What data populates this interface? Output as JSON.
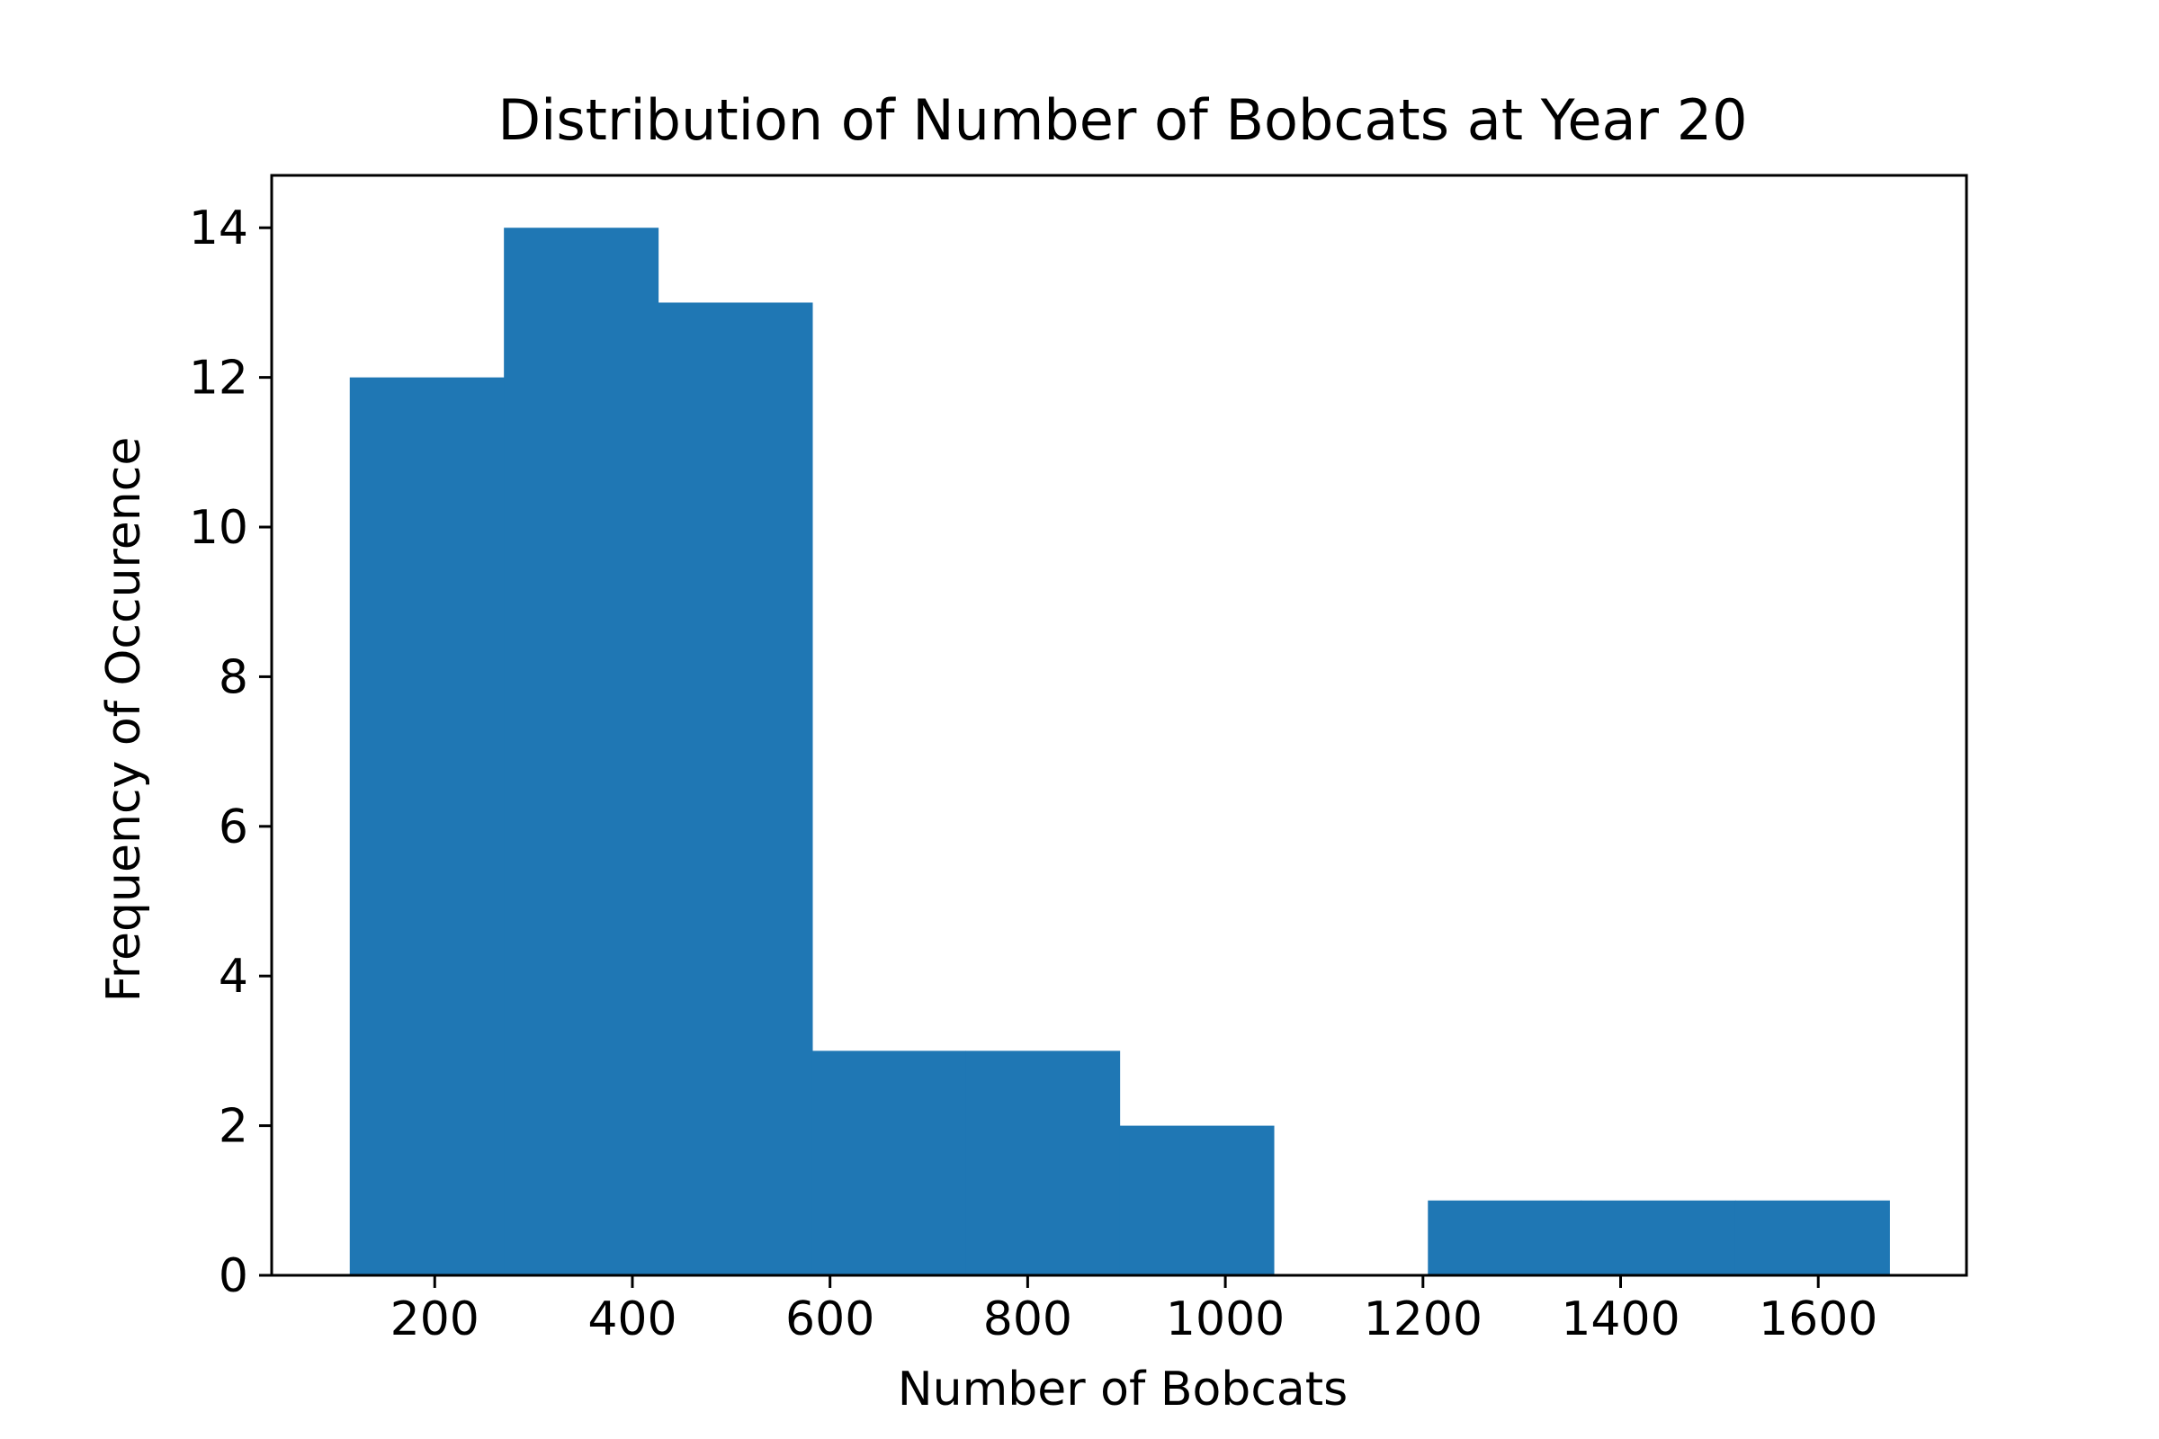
{
  "chart_data": {
    "type": "bar",
    "title": "Distribution of Number of Bobcats at Year 20",
    "xlabel": "Number of Bobcats",
    "ylabel": "Frequency of Occurence",
    "xlim": [
      35,
      1750
    ],
    "ylim": [
      0,
      14.7
    ],
    "xticks": [
      200,
      400,
      600,
      800,
      1000,
      1200,
      1400,
      1600
    ],
    "yticks": [
      0,
      2,
      4,
      6,
      8,
      10,
      12,
      14
    ],
    "grid": false,
    "bar_color": "#1f77b4",
    "bins": [
      {
        "x0": 114,
        "x1": 270,
        "count": 12
      },
      {
        "x0": 270,
        "x1": 426,
        "count": 14
      },
      {
        "x0": 426,
        "x1": 582,
        "count": 13
      },
      {
        "x0": 582,
        "x1": 737,
        "count": 3
      },
      {
        "x0": 737,
        "x1": 893,
        "count": 3
      },
      {
        "x0": 893,
        "x1": 1049,
        "count": 2
      },
      {
        "x0": 1049,
        "x1": 1205,
        "count": 0
      },
      {
        "x0": 1205,
        "x1": 1360,
        "count": 1
      },
      {
        "x0": 1360,
        "x1": 1516,
        "count": 1
      },
      {
        "x0": 1516,
        "x1": 1672,
        "count": 1
      }
    ]
  }
}
